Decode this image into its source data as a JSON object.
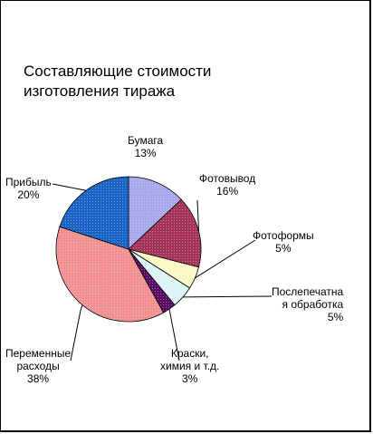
{
  "chart_data": {
    "type": "pie",
    "title_lines": [
      "Составляющие стоимости",
      "изготовления тиража"
    ],
    "slices": [
      {
        "label_lines": [
          "Бумага"
        ],
        "pct_label": "13%",
        "value": 13,
        "color": "#a8a8ec"
      },
      {
        "label_lines": [
          "Фотовывод"
        ],
        "pct_label": "16%",
        "value": 16,
        "color": "#a5345a"
      },
      {
        "label_lines": [
          "Фотоформы"
        ],
        "pct_label": "5%",
        "value": 5,
        "color": "#fbf8c8"
      },
      {
        "label_lines": [
          "Послепечатна",
          "я обработка"
        ],
        "pct_label": "5%",
        "value": 5,
        "color": "#dcf4f8"
      },
      {
        "label_lines": [
          "Краски,",
          "химия и т.д."
        ],
        "pct_label": "3%",
        "value": 3,
        "color": "#5a0a64"
      },
      {
        "label_lines": [
          "Переменные",
          "расходы"
        ],
        "pct_label": "38%",
        "value": 38,
        "color": "#f09090"
      },
      {
        "label_lines": [
          "Прибыль"
        ],
        "pct_label": "20%",
        "value": 20,
        "color": "#1a64c8"
      }
    ]
  }
}
